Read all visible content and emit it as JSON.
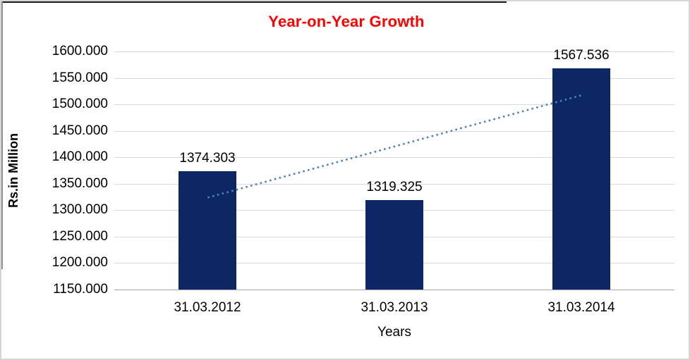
{
  "window": {
    "background": "#ffffff",
    "border_color": "#d5d5d5",
    "top_edge_color": "#1b1b1b"
  },
  "chart_data": {
    "type": "bar",
    "title": "Year-on-Year Growth",
    "title_color": "#ff0000",
    "categories": [
      "31.03.2012",
      "31.03.2013",
      "31.03.2014"
    ],
    "values": [
      1374.303,
      1319.325,
      1567.536
    ],
    "data_labels": [
      "1374.303",
      "1319.325",
      "1567.536"
    ],
    "xlabel": "Years",
    "ylabel": "Rs.in Million",
    "ylim": [
      1150,
      1600
    ],
    "ytick_step": 50,
    "ytick_labels": [
      "1600.000",
      "1550.000",
      "1500.000",
      "1450.000",
      "1400.000",
      "1350.000",
      "1300.000",
      "1250.000",
      "1200.000",
      "1150.000"
    ],
    "grid": true,
    "legend": "none",
    "bar_color": "#0d2664",
    "grid_color": "#d9d9d9",
    "axis_line_color": "#a6a6a6",
    "text_color": "#000000",
    "trendline": {
      "type": "linear",
      "style": "dotted",
      "color": "#4f81bd",
      "start_value": 1323.771,
      "end_value": 1517.005
    }
  }
}
